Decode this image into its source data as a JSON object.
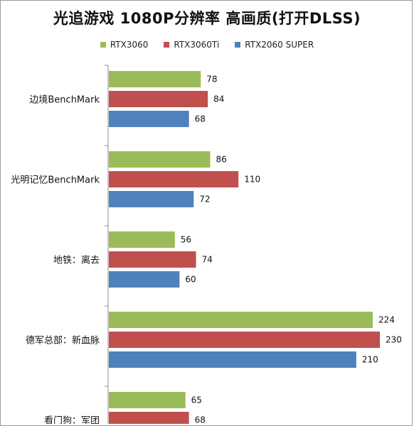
{
  "chart_data": {
    "type": "bar",
    "orientation": "horizontal",
    "title": "光追游戏 1080P分辨率 高画质(打开DLSS)",
    "categories": [
      "边境BenchMark",
      "光明记忆BenchMark",
      "地铁：离去",
      "德军总部：新血脉",
      "看门狗：军团"
    ],
    "series": [
      {
        "name": "RTX3060",
        "color": "#9bbb59",
        "values": [
          78,
          86,
          56,
          224,
          65
        ]
      },
      {
        "name": "RTX3060Ti",
        "color": "#c0504d",
        "values": [
          84,
          110,
          74,
          230,
          68
        ]
      },
      {
        "name": "RTX2060 SUPER",
        "color": "#4f81bd",
        "values": [
          68,
          72,
          60,
          210,
          null
        ]
      }
    ],
    "legend_position": "top",
    "grid": false,
    "xlim": [
      0,
      250
    ]
  }
}
